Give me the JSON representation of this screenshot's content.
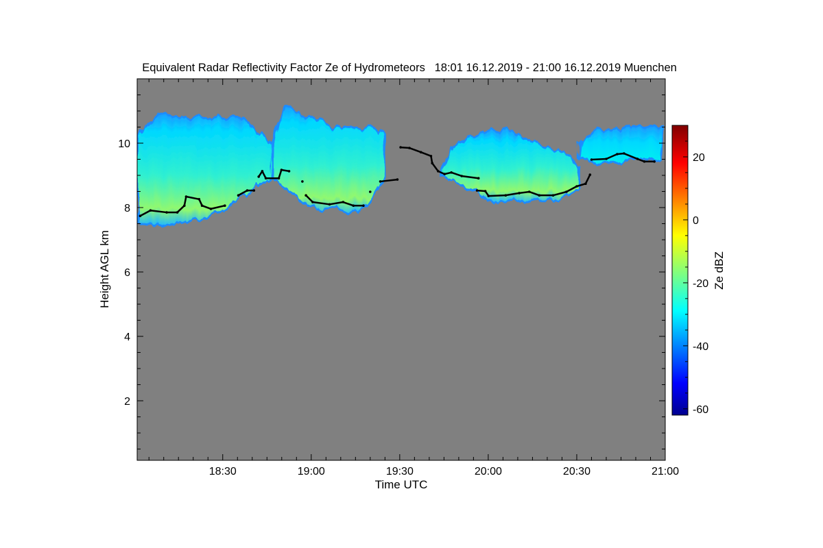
{
  "chart_data": {
    "type": "heatmap",
    "title": "Equivalent Radar Reflectivity Factor Ze of Hydrometeors   18:01 16.12.2019 - 21:00 16.12.2019 Muenchen",
    "xlabel": "Time UTC",
    "ylabel": "Height AGL km",
    "x_unit": "minutes after 18:00 UTC",
    "xlim": [
      1,
      180
    ],
    "ylim": [
      0.15,
      12.0
    ],
    "x_ticks": [
      {
        "value": 30,
        "label": "18:30"
      },
      {
        "value": 60,
        "label": "19:00"
      },
      {
        "value": 90,
        "label": "19:30"
      },
      {
        "value": 120,
        "label": "20:00"
      },
      {
        "value": 150,
        "label": "20:30"
      },
      {
        "value": 180,
        "label": "21:00"
      }
    ],
    "y_ticks": [
      {
        "value": 2,
        "label": "2"
      },
      {
        "value": 4,
        "label": "4"
      },
      {
        "value": 6,
        "label": "6"
      },
      {
        "value": 8,
        "label": "8"
      },
      {
        "value": 10,
        "label": "10"
      }
    ],
    "background_color": "#808080",
    "colorbar": {
      "label": "Ze dBZ",
      "range": [
        -62,
        30
      ],
      "colormap": "jet",
      "ticks": [
        {
          "value": -60,
          "label": "-60"
        },
        {
          "value": -40,
          "label": "-40"
        },
        {
          "value": -20,
          "label": "-20"
        },
        {
          "value": 0,
          "label": "0"
        },
        {
          "value": 20,
          "label": "20"
        }
      ]
    },
    "cloud_regions": [
      {
        "name": "cloud-1",
        "typical_dbz": -18,
        "profile": [
          [
            1,
            10.2,
            7.5
          ],
          [
            8,
            10.9,
            7.45
          ],
          [
            15,
            10.85,
            7.5
          ],
          [
            20,
            10.8,
            7.6
          ],
          [
            24,
            10.7,
            7.65
          ],
          [
            30,
            10.75,
            7.9
          ],
          [
            36,
            10.9,
            8.3
          ],
          [
            42,
            10.3,
            8.7
          ],
          [
            47,
            10.0,
            8.9
          ]
        ]
      },
      {
        "name": "cloud-2",
        "typical_dbz": -20,
        "profile": [
          [
            47,
            10.1,
            8.9
          ],
          [
            51,
            11.1,
            8.6
          ],
          [
            57,
            10.9,
            8.1
          ],
          [
            62,
            10.7,
            7.9
          ],
          [
            68,
            10.5,
            8.0
          ],
          [
            72,
            10.5,
            7.9
          ],
          [
            76,
            10.5,
            7.8
          ],
          [
            80,
            10.5,
            8.2
          ],
          [
            85,
            10.3,
            8.9
          ]
        ]
      },
      {
        "name": "cloud-3",
        "typical_dbz": -22,
        "profile": [
          [
            104,
            9.2,
            9.0
          ],
          [
            108,
            9.9,
            8.8
          ],
          [
            114,
            10.2,
            8.6
          ],
          [
            120,
            10.4,
            8.2
          ],
          [
            128,
            10.4,
            8.2
          ],
          [
            135,
            10.0,
            8.25
          ],
          [
            142,
            9.8,
            8.25
          ],
          [
            148,
            9.6,
            8.4
          ],
          [
            151,
            9.2,
            8.55
          ]
        ]
      },
      {
        "name": "cloud-4",
        "typical_dbz": -28,
        "profile": [
          [
            151,
            10.0,
            9.5
          ],
          [
            156,
            10.4,
            9.4
          ],
          [
            162,
            10.4,
            9.4
          ],
          [
            168,
            10.5,
            9.55
          ],
          [
            174,
            10.5,
            9.5
          ],
          [
            179,
            10.5,
            9.5
          ]
        ]
      }
    ],
    "cloud_base_line": [
      [
        2,
        7.74
      ],
      [
        5.5,
        7.91
      ],
      [
        11,
        7.85
      ],
      [
        14.6,
        7.85
      ],
      [
        17,
        8.06
      ],
      [
        17.6,
        8.34
      ],
      [
        22,
        8.26
      ],
      [
        23,
        8.06
      ],
      [
        26,
        7.96
      ],
      [
        30.7,
        8.06
      ],
      [
        35.3,
        8.38
      ],
      [
        38.3,
        8.53
      ],
      [
        40.6,
        8.53
      ],
      [
        42.2,
        8.96
      ],
      [
        43.4,
        9.13
      ],
      [
        44.6,
        8.91
      ],
      [
        49,
        8.91
      ],
      [
        49.9,
        9.17
      ],
      [
        52.5,
        9.13
      ],
      [
        57,
        8.81
      ],
      [
        58.2,
        8.38
      ],
      [
        60.5,
        8.17
      ],
      [
        66.2,
        8.1
      ],
      [
        70.8,
        8.17
      ],
      [
        74.3,
        8.06
      ],
      [
        77.7,
        8.06
      ],
      [
        80,
        8.49
      ],
      [
        83.4,
        8.81
      ],
      [
        89.2,
        8.87
      ],
      [
        90.3,
        9.87
      ],
      [
        93.3,
        9.85
      ],
      [
        97.2,
        9.72
      ],
      [
        100.6,
        9.6
      ],
      [
        101,
        9.38
      ],
      [
        103,
        9.13
      ],
      [
        105.2,
        9.04
      ],
      [
        107.5,
        9.09
      ],
      [
        111,
        8.98
      ],
      [
        116.7,
        8.91
      ],
      [
        116.2,
        8.53
      ],
      [
        119,
        8.51
      ],
      [
        120.1,
        8.36
      ],
      [
        125.9,
        8.38
      ],
      [
        130.5,
        8.45
      ],
      [
        133.9,
        8.49
      ],
      [
        137.3,
        8.38
      ],
      [
        142,
        8.38
      ],
      [
        146.5,
        8.49
      ],
      [
        150,
        8.66
      ],
      [
        153,
        8.74
      ],
      [
        154.5,
        9.02
      ],
      [
        155,
        9.49
      ],
      [
        160,
        9.51
      ],
      [
        163.7,
        9.66
      ],
      [
        166,
        9.68
      ],
      [
        170.6,
        9.51
      ],
      [
        172.9,
        9.43
      ],
      [
        176.3,
        9.43
      ]
    ]
  }
}
